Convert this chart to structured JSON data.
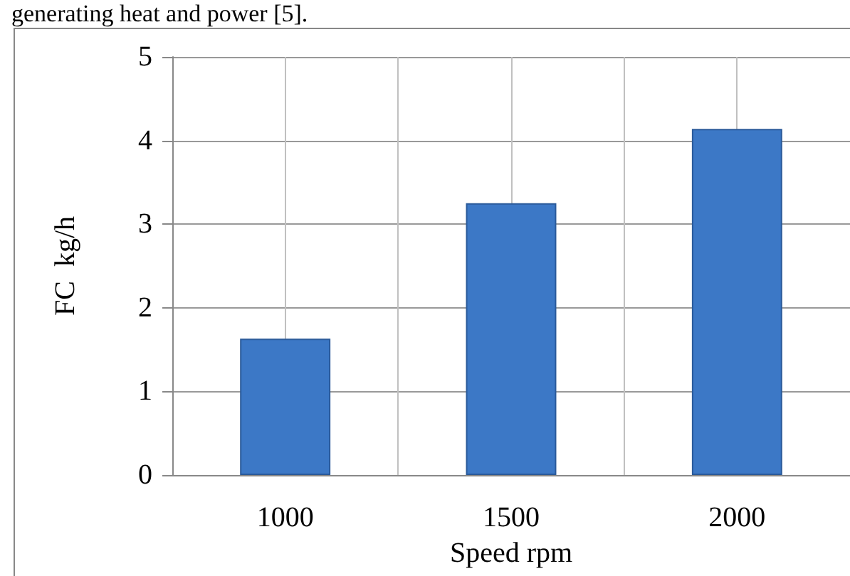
{
  "chart_data": {
    "type": "bar",
    "xlabel": "Speed rpm",
    "ylabel": "FC  kg/h",
    "categories": [
      "1000",
      "1500",
      "2000"
    ],
    "values": [
      1.63,
      3.25,
      4.14
    ],
    "color": "#3c78c6",
    "ylim": [
      0,
      5
    ],
    "yticks": [
      0,
      1,
      2,
      3,
      4,
      5
    ],
    "grid": true,
    "annotations": [
      "generating heat and power [5]."
    ]
  }
}
